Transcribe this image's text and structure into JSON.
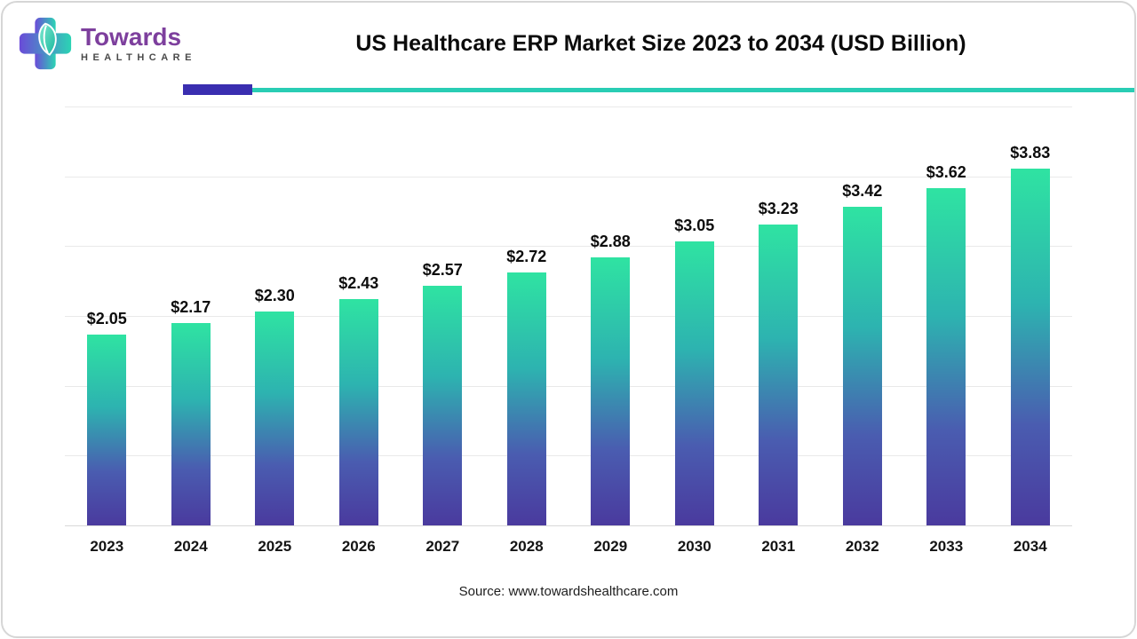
{
  "header": {
    "title": "US Healthcare ERP Market Size 2023 to 2034 (USD Billion)",
    "logo": {
      "brand": "Towards",
      "sub": "HEALTHCARE",
      "icon": "cross-leaf-icon",
      "brand_color": "#7d3f9d"
    }
  },
  "divider": {
    "accent_color": "#3a2eb0",
    "line_color": "#29cdb4"
  },
  "chart_data": {
    "type": "bar",
    "title": "US Healthcare ERP Market Size 2023 to 2034 (USD Billion)",
    "categories": [
      "2023",
      "2024",
      "2025",
      "2026",
      "2027",
      "2028",
      "2029",
      "2030",
      "2031",
      "2032",
      "2033",
      "2034"
    ],
    "values": [
      2.05,
      2.17,
      2.3,
      2.43,
      2.57,
      2.72,
      2.88,
      3.05,
      3.23,
      3.42,
      3.62,
      3.83
    ],
    "value_labels": [
      "$2.05",
      "$2.17",
      "$2.30",
      "$2.43",
      "$2.57",
      "$2.72",
      "$2.88",
      "$3.05",
      "$3.23",
      "$3.42",
      "$3.62",
      "$3.83"
    ],
    "unit": "USD Billion",
    "xlabel": "",
    "ylabel": "",
    "ylim": [
      0,
      4.5
    ],
    "grid": true,
    "gridline_count": 7,
    "legend": false,
    "bar_gradient_top": "#2fe3a2",
    "bar_gradient_bottom": "#4a3a9e"
  },
  "footer": {
    "source": "Source: www.towardshealthcare.com"
  }
}
